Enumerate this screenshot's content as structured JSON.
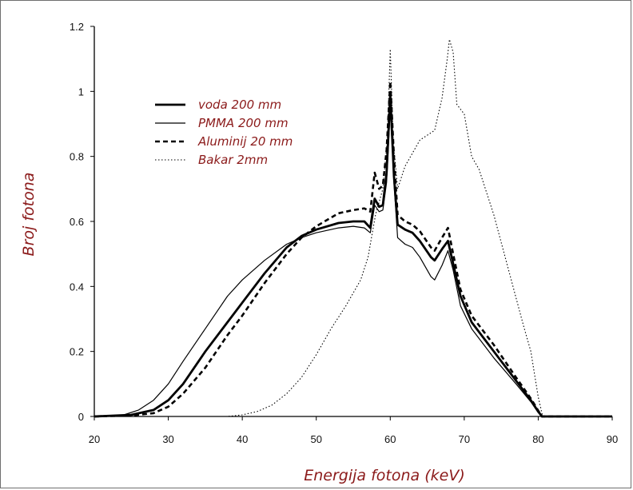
{
  "chart_data": {
    "type": "line",
    "title": "",
    "xlabel": "Energija fotona (keV)",
    "ylabel": "Broj  fotona",
    "xlim": [
      20,
      90
    ],
    "ylim": [
      0,
      1.2
    ],
    "xticks": [
      "20",
      "30",
      "40",
      "50",
      "60",
      "70",
      "80",
      "90"
    ],
    "yticks": [
      "0",
      "0.2",
      "0.4",
      "0.6",
      "0.8",
      "1",
      "1.2"
    ],
    "grid": false,
    "legend_position": "top-left",
    "series": [
      {
        "name": "voda   200 mm",
        "style": "thick-solid",
        "color": "#000000",
        "points": [
          [
            20,
            0
          ],
          [
            25,
            0.005
          ],
          [
            28,
            0.02
          ],
          [
            30,
            0.05
          ],
          [
            32,
            0.1
          ],
          [
            35,
            0.2
          ],
          [
            38,
            0.29
          ],
          [
            40,
            0.35
          ],
          [
            43,
            0.44
          ],
          [
            46,
            0.52
          ],
          [
            48,
            0.555
          ],
          [
            50,
            0.575
          ],
          [
            53,
            0.595
          ],
          [
            55,
            0.6
          ],
          [
            56.5,
            0.6
          ],
          [
            57.3,
            0.58
          ],
          [
            57.9,
            0.67
          ],
          [
            58.5,
            0.645
          ],
          [
            59,
            0.65
          ],
          [
            59.5,
            0.75
          ],
          [
            60,
            0.99
          ],
          [
            60.5,
            0.74
          ],
          [
            61,
            0.59
          ],
          [
            62,
            0.575
          ],
          [
            63,
            0.565
          ],
          [
            64,
            0.54
          ],
          [
            65.5,
            0.49
          ],
          [
            66,
            0.48
          ],
          [
            67,
            0.515
          ],
          [
            67.8,
            0.54
          ],
          [
            68.5,
            0.47
          ],
          [
            69.5,
            0.37
          ],
          [
            71,
            0.29
          ],
          [
            74,
            0.2
          ],
          [
            77,
            0.11
          ],
          [
            79,
            0.05
          ],
          [
            80,
            0.015
          ],
          [
            80.5,
            0
          ],
          [
            90,
            0
          ]
        ]
      },
      {
        "name": "PMMA  200 mm",
        "style": "thin-solid",
        "color": "#000000",
        "points": [
          [
            20,
            0
          ],
          [
            24,
            0.005
          ],
          [
            26,
            0.02
          ],
          [
            28,
            0.05
          ],
          [
            30,
            0.1
          ],
          [
            32,
            0.17
          ],
          [
            35,
            0.27
          ],
          [
            38,
            0.37
          ],
          [
            40,
            0.42
          ],
          [
            43,
            0.48
          ],
          [
            46,
            0.53
          ],
          [
            48,
            0.55
          ],
          [
            50,
            0.565
          ],
          [
            53,
            0.58
          ],
          [
            55,
            0.585
          ],
          [
            56.5,
            0.58
          ],
          [
            57.3,
            0.565
          ],
          [
            57.9,
            0.65
          ],
          [
            58.5,
            0.63
          ],
          [
            59,
            0.635
          ],
          [
            59.5,
            0.72
          ],
          [
            60,
            0.95
          ],
          [
            60.5,
            0.72
          ],
          [
            61,
            0.55
          ],
          [
            62,
            0.53
          ],
          [
            63,
            0.52
          ],
          [
            64,
            0.49
          ],
          [
            65.5,
            0.43
          ],
          [
            66,
            0.42
          ],
          [
            67,
            0.465
          ],
          [
            67.8,
            0.51
          ],
          [
            68.5,
            0.45
          ],
          [
            69.5,
            0.34
          ],
          [
            71,
            0.27
          ],
          [
            74,
            0.18
          ],
          [
            77,
            0.1
          ],
          [
            79,
            0.045
          ],
          [
            80,
            0.012
          ],
          [
            80.5,
            0
          ],
          [
            90,
            0
          ]
        ]
      },
      {
        "name": "Aluminij  20 mm",
        "style": "thick-dashed",
        "color": "#000000",
        "points": [
          [
            20,
            0
          ],
          [
            25,
            0.003
          ],
          [
            28,
            0.01
          ],
          [
            30,
            0.03
          ],
          [
            32,
            0.07
          ],
          [
            35,
            0.15
          ],
          [
            38,
            0.25
          ],
          [
            40,
            0.31
          ],
          [
            43,
            0.41
          ],
          [
            46,
            0.5
          ],
          [
            48,
            0.55
          ],
          [
            50,
            0.585
          ],
          [
            53,
            0.625
          ],
          [
            55,
            0.635
          ],
          [
            56.5,
            0.64
          ],
          [
            57.3,
            0.63
          ],
          [
            57.9,
            0.75
          ],
          [
            58.5,
            0.7
          ],
          [
            59,
            0.71
          ],
          [
            59.5,
            0.82
          ],
          [
            60,
            1.03
          ],
          [
            60.5,
            0.8
          ],
          [
            61,
            0.62
          ],
          [
            62,
            0.6
          ],
          [
            63,
            0.59
          ],
          [
            64,
            0.57
          ],
          [
            65.5,
            0.52
          ],
          [
            66,
            0.51
          ],
          [
            67,
            0.55
          ],
          [
            67.8,
            0.58
          ],
          [
            68.5,
            0.5
          ],
          [
            69.5,
            0.39
          ],
          [
            71,
            0.31
          ],
          [
            74,
            0.22
          ],
          [
            77,
            0.12
          ],
          [
            79,
            0.055
          ],
          [
            80,
            0.018
          ],
          [
            80.5,
            0
          ],
          [
            90,
            0
          ]
        ]
      },
      {
        "name": "Bakar  2mm",
        "style": "dotted",
        "color": "#000000",
        "points": [
          [
            20,
            0
          ],
          [
            38,
            0
          ],
          [
            40,
            0.005
          ],
          [
            42,
            0.015
          ],
          [
            44,
            0.035
          ],
          [
            46,
            0.07
          ],
          [
            48,
            0.12
          ],
          [
            50,
            0.19
          ],
          [
            52,
            0.27
          ],
          [
            54,
            0.34
          ],
          [
            56,
            0.42
          ],
          [
            57,
            0.49
          ],
          [
            58,
            0.62
          ],
          [
            59,
            0.7
          ],
          [
            59.6,
            0.85
          ],
          [
            60,
            1.13
          ],
          [
            60.4,
            0.85
          ],
          [
            61,
            0.7
          ],
          [
            62,
            0.77
          ],
          [
            64,
            0.85
          ],
          [
            66,
            0.88
          ],
          [
            67,
            0.98
          ],
          [
            67.7,
            1.1
          ],
          [
            68,
            1.16
          ],
          [
            68.5,
            1.12
          ],
          [
            69,
            0.96
          ],
          [
            70,
            0.93
          ],
          [
            71,
            0.8
          ],
          [
            72,
            0.76
          ],
          [
            74,
            0.62
          ],
          [
            76,
            0.45
          ],
          [
            78,
            0.28
          ],
          [
            79,
            0.2
          ],
          [
            80,
            0.06
          ],
          [
            80.6,
            0
          ],
          [
            90,
            0
          ]
        ]
      }
    ]
  }
}
